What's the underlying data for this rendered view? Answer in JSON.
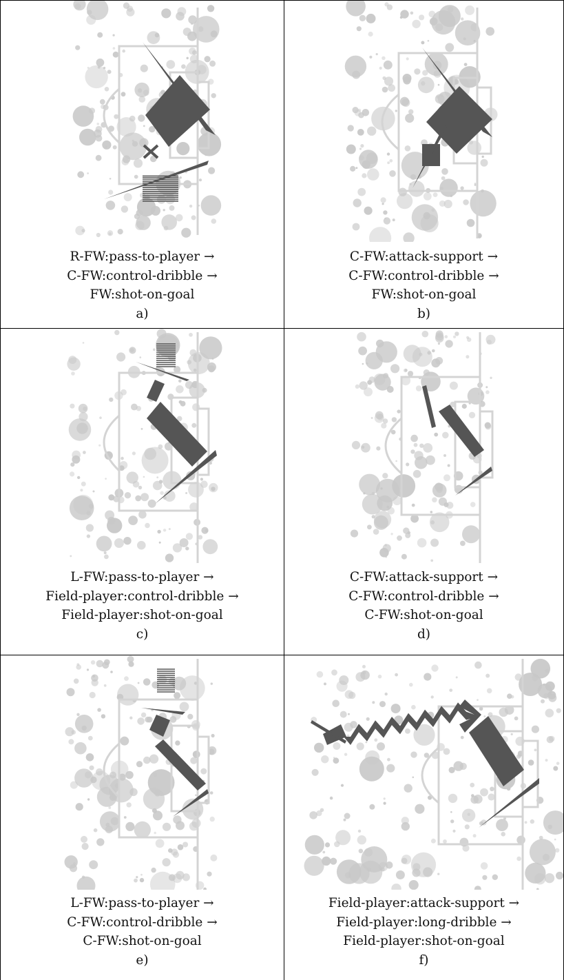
{
  "panels": [
    {
      "id": "a",
      "letter": "a)",
      "lines": [
        "R-FW:pass-to-player →",
        "C-FW:control-dribble →",
        "FW:shot-on-goal"
      ]
    },
    {
      "id": "b",
      "letter": "b)",
      "lines": [
        "C-FW:attack-support →",
        "C-FW:control-dribble →",
        "FW:shot-on-goal"
      ]
    },
    {
      "id": "c",
      "letter": "c)",
      "lines": [
        "L-FW:pass-to-player →",
        "Field-player:control-dribble →",
        "Field-player:shot-on-goal"
      ]
    },
    {
      "id": "d",
      "letter": "d)",
      "lines": [
        "C-FW:attack-support →",
        "C-FW:control-dribble →",
        "C-FW:shot-on-goal"
      ]
    },
    {
      "id": "e",
      "letter": "e)",
      "lines": [
        "L-FW:pass-to-player →",
        "C-FW:control-dribble →",
        "C-FW:shot-on-goal"
      ]
    },
    {
      "id": "f",
      "letter": "f)",
      "lines": [
        "Field-player:attack-support →",
        "Field-player:long-dribble →",
        "Field-player:shot-on-goal"
      ]
    }
  ],
  "colors": {
    "pitch_lines": "#d4d4d4",
    "blobs": "#c8c8c8",
    "glyphs": "#555555",
    "borders": "#000000"
  }
}
